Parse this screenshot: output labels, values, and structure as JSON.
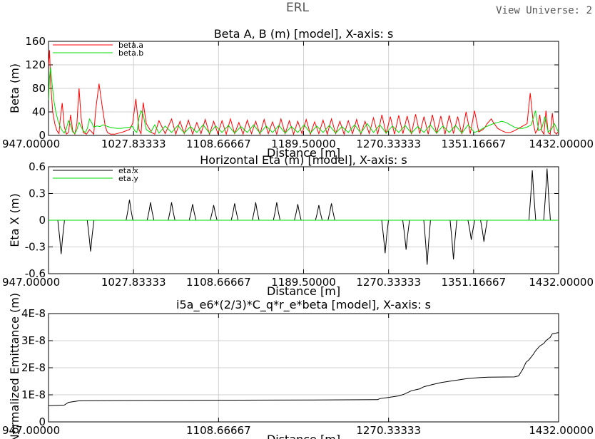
{
  "window": {
    "title": "ERL",
    "view_universe_label": "View Universe:",
    "view_universe_value": "2"
  },
  "chart_data": [
    {
      "type": "line",
      "title": "Beta A, B (m) [model],  X-axis: s",
      "xlabel": "Distance [m]",
      "ylabel": "Beta (m)",
      "xlim": [
        947.0,
        1432.0
      ],
      "ylim": [
        0,
        160
      ],
      "xticks": [
        "947.00000",
        "1027.83333",
        "1108.66667",
        "1189.50000",
        "1270.33333",
        "1351.16667",
        "1432.00000"
      ],
      "yticks": [
        "0",
        "40",
        "80",
        "120",
        "160"
      ],
      "grid": true,
      "legend_position": "top-left",
      "series": [
        {
          "name": "beta.a",
          "color": "#ff0000",
          "x": [
            947,
            948,
            949,
            951,
            953,
            955,
            957,
            958,
            960,
            962,
            964,
            966,
            968,
            970,
            972,
            974,
            976,
            978,
            980,
            983,
            986,
            990,
            992,
            995,
            998,
            1001,
            1003,
            1006,
            1010,
            1014,
            1018,
            1021,
            1024,
            1027,
            1030,
            1033,
            1035,
            1037,
            1040,
            1045,
            1048,
            1052,
            1058,
            1064,
            1068,
            1072,
            1076,
            1080,
            1084,
            1088,
            1092,
            1096,
            1100,
            1104,
            1108,
            1112,
            1116,
            1120,
            1124,
            1128,
            1132,
            1136,
            1140,
            1144,
            1148,
            1152,
            1156,
            1160,
            1164,
            1168,
            1172,
            1176,
            1180,
            1184,
            1188,
            1192,
            1196,
            1200,
            1204,
            1208,
            1212,
            1216,
            1220,
            1224,
            1228,
            1232,
            1236,
            1240,
            1244,
            1248,
            1252,
            1256,
            1260,
            1264,
            1268,
            1272,
            1276,
            1280,
            1284,
            1288,
            1292,
            1296,
            1300,
            1304,
            1308,
            1312,
            1316,
            1320,
            1324,
            1328,
            1332,
            1336,
            1340,
            1344,
            1348,
            1352,
            1356,
            1360,
            1362,
            1364,
            1366,
            1368,
            1370,
            1374,
            1378,
            1382,
            1386,
            1390,
            1394,
            1398,
            1402,
            1405,
            1408,
            1410,
            1412,
            1414,
            1416,
            1418,
            1420,
            1422,
            1424,
            1426,
            1428,
            1430,
            1432
          ],
          "y": [
            120,
            145,
            90,
            40,
            20,
            8,
            3,
            25,
            55,
            15,
            2,
            5,
            35,
            8,
            2,
            20,
            80,
            30,
            5,
            2,
            10,
            2,
            45,
            88,
            50,
            15,
            5,
            2,
            2,
            4,
            6,
            8,
            10,
            20,
            62,
            10,
            3,
            56,
            20,
            5,
            2,
            25,
            3,
            28,
            2,
            24,
            3,
            26,
            2,
            22,
            3,
            27,
            2,
            24,
            3,
            25,
            2,
            28,
            3,
            22,
            2,
            26,
            3,
            24,
            2,
            27,
            3,
            23,
            2,
            28,
            3,
            25,
            2,
            24,
            3,
            27,
            2,
            23,
            3,
            26,
            2,
            28,
            3,
            24,
            2,
            25,
            3,
            27,
            2,
            24,
            3,
            30,
            2,
            35,
            3,
            32,
            2,
            34,
            3,
            33,
            2,
            36,
            3,
            32,
            2,
            35,
            3,
            33,
            2,
            34,
            3,
            32,
            2,
            40,
            3,
            42,
            6,
            10,
            14,
            20,
            24,
            28,
            22,
            12,
            8,
            5,
            5,
            8,
            12,
            16,
            20,
            72,
            20,
            4,
            10,
            35,
            8,
            2,
            42,
            5,
            2,
            38,
            6,
            2,
            8
          ]
        },
        {
          "name": "beta.b",
          "color": "#00dd00",
          "x": [
            947,
            948,
            949,
            950,
            952,
            954,
            956,
            958,
            960,
            962,
            964,
            966,
            968,
            970,
            972,
            974,
            976,
            978,
            980,
            982,
            984,
            986,
            988,
            990,
            993,
            996,
            999,
            1002,
            1005,
            1008,
            1012,
            1016,
            1020,
            1024,
            1027,
            1029,
            1031,
            1033,
            1035,
            1037,
            1040,
            1044,
            1048,
            1052,
            1058,
            1064,
            1070,
            1076,
            1082,
            1088,
            1094,
            1100,
            1106,
            1112,
            1118,
            1124,
            1130,
            1136,
            1142,
            1148,
            1154,
            1160,
            1166,
            1172,
            1178,
            1184,
            1190,
            1196,
            1202,
            1208,
            1214,
            1220,
            1226,
            1232,
            1238,
            1244,
            1250,
            1256,
            1262,
            1268,
            1274,
            1280,
            1286,
            1292,
            1298,
            1304,
            1310,
            1316,
            1322,
            1328,
            1334,
            1340,
            1346,
            1352,
            1356,
            1358,
            1362,
            1366,
            1370,
            1374,
            1378,
            1382,
            1386,
            1390,
            1394,
            1398,
            1402,
            1406,
            1410,
            1413,
            1416,
            1419,
            1422,
            1425,
            1428,
            1432
          ],
          "y": [
            60,
            100,
            115,
            95,
            60,
            40,
            25,
            15,
            8,
            4,
            12,
            25,
            18,
            6,
            3,
            10,
            22,
            15,
            8,
            5,
            12,
            28,
            22,
            14,
            16,
            15,
            18,
            16,
            14,
            13,
            12,
            12,
            13,
            14,
            15,
            8,
            5,
            30,
            42,
            35,
            10,
            5,
            18,
            4,
            16,
            5,
            17,
            4,
            15,
            5,
            18,
            4,
            16,
            5,
            17,
            4,
            15,
            5,
            18,
            4,
            16,
            5,
            17,
            4,
            15,
            5,
            18,
            4,
            16,
            5,
            17,
            4,
            15,
            5,
            18,
            4,
            20,
            5,
            18,
            4,
            16,
            5,
            17,
            4,
            15,
            5,
            18,
            4,
            16,
            5,
            17,
            4,
            18,
            5,
            8,
            10,
            14,
            17,
            20,
            22,
            24,
            22,
            18,
            14,
            12,
            12,
            14,
            18,
            42,
            8,
            12,
            32,
            6,
            10,
            20,
            5
          ]
        }
      ]
    },
    {
      "type": "line",
      "title": "Horizontal Eta (m) [model],  X-axis: s",
      "xlabel": "Distance [m]",
      "ylabel": "Eta X (m)",
      "xlim": [
        947.0,
        1432.0
      ],
      "ylim": [
        -0.6,
        0.6
      ],
      "xticks": [
        "947.00000",
        "1027.83333",
        "1108.66667",
        "1189.50000",
        "1270.33333",
        "1351.16667",
        "1432.00000"
      ],
      "yticks": [
        "-0.6",
        "-0.3",
        "0",
        "0.3",
        "0.6"
      ],
      "grid": true,
      "legend_position": "top-left",
      "series": [
        {
          "name": "eta.x",
          "color": "#000000",
          "peaks": [
            {
              "x": 959,
              "y": -0.38
            },
            {
              "x": 987,
              "y": -0.35
            },
            {
              "x": 1024,
              "y": 0.23
            },
            {
              "x": 1044,
              "y": 0.2
            },
            {
              "x": 1064,
              "y": 0.2
            },
            {
              "x": 1084,
              "y": 0.18
            },
            {
              "x": 1104,
              "y": 0.17
            },
            {
              "x": 1124,
              "y": 0.19
            },
            {
              "x": 1144,
              "y": 0.2
            },
            {
              "x": 1164,
              "y": 0.2
            },
            {
              "x": 1184,
              "y": 0.18
            },
            {
              "x": 1204,
              "y": 0.17
            },
            {
              "x": 1216,
              "y": 0.19
            },
            {
              "x": 1267,
              "y": -0.37
            },
            {
              "x": 1287,
              "y": -0.33
            },
            {
              "x": 1307,
              "y": -0.5
            },
            {
              "x": 1332,
              "y": -0.44
            },
            {
              "x": 1349,
              "y": -0.22
            },
            {
              "x": 1361,
              "y": -0.24
            },
            {
              "x": 1407,
              "y": 0.56
            },
            {
              "x": 1421,
              "y": 0.58
            }
          ]
        },
        {
          "name": "eta.y",
          "color": "#00dd00",
          "constant": 0
        }
      ]
    },
    {
      "type": "line",
      "title": "i5a_e6*(2/3)*C_q*r_e*beta [model],  X-axis: s",
      "xlabel": "Distance [m]",
      "ylabel": "Normalized Emittance (m)",
      "xlim": [
        947.0,
        1432.0
      ],
      "ylim": [
        0,
        4e-08
      ],
      "xticks": [
        "947.00000",
        "1108.66667",
        "1270.33333",
        "1432.00000"
      ],
      "yticks": [
        "0",
        "1E-8",
        "2E-8",
        "3E-8",
        "4E-8"
      ],
      "grid": true,
      "series": [
        {
          "name": "",
          "color": "#000000",
          "x": [
            947,
            962,
            966,
            976,
            1020,
            1100,
            1200,
            1260,
            1262,
            1270,
            1280,
            1285,
            1292,
            1300,
            1304,
            1312,
            1320,
            1328,
            1335,
            1345,
            1352,
            1358,
            1365,
            1390,
            1394,
            1398,
            1401,
            1404,
            1408,
            1410,
            1414,
            1418,
            1420,
            1424,
            1426,
            1432
          ],
          "y": [
            6e-09,
            6.2e-09,
            7.2e-09,
            7.8e-09,
            7.9e-09,
            8e-09,
            8.1e-09,
            8.2e-09,
            8.6e-09,
            9e-09,
            9.6e-09,
            1.02e-08,
            1.15e-08,
            1.22e-08,
            1.3e-08,
            1.38e-08,
            1.45e-08,
            1.5e-08,
            1.54e-08,
            1.6e-08,
            1.62e-08,
            1.64e-08,
            1.65e-08,
            1.66e-08,
            1.7e-08,
            1.95e-08,
            2.2e-08,
            2.3e-08,
            2.5e-08,
            2.62e-08,
            2.8e-08,
            2.9e-08,
            3e-08,
            3.12e-08,
            3.25e-08,
            3.3e-08
          ]
        }
      ]
    }
  ]
}
